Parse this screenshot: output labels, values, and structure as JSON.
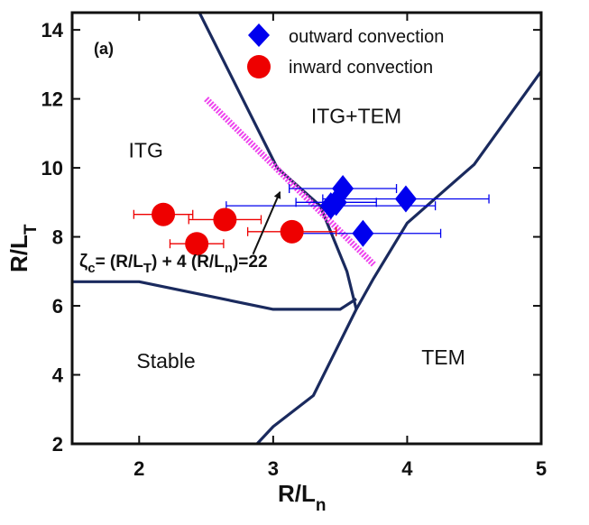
{
  "chart_data": {
    "type": "scatter",
    "panel_label": "(a)",
    "xlabel": "R/L",
    "xlabel_sub": "n",
    "ylabel": "R/L",
    "ylabel_sub": "T",
    "xlim": [
      1.5,
      5.0
    ],
    "ylim": [
      2.0,
      14.5
    ],
    "x_ticks": [
      2,
      3,
      4,
      5
    ],
    "y_ticks": [
      2,
      4,
      6,
      8,
      10,
      12,
      14
    ],
    "grid": false,
    "legend_position": "top-right",
    "series": [
      {
        "name": "outward convection",
        "marker": "diamond",
        "color": "#0000ee",
        "points": [
          {
            "x": 3.43,
            "y": 8.9,
            "xerr": 0.78
          },
          {
            "x": 3.52,
            "y": 9.4,
            "xerr": 0.4
          },
          {
            "x": 3.47,
            "y": 9.0,
            "xerr": 0.3
          },
          {
            "x": 3.67,
            "y": 8.1,
            "xerr": 0.58
          },
          {
            "x": 3.99,
            "y": 9.1,
            "xerr": 0.62
          }
        ]
      },
      {
        "name": "inward convection",
        "marker": "circle",
        "color": "#ee0000",
        "points": [
          {
            "x": 2.18,
            "y": 8.65,
            "xerr": 0.22
          },
          {
            "x": 2.43,
            "y": 7.8,
            "xerr": 0.2
          },
          {
            "x": 2.64,
            "y": 8.5,
            "xerr": 0.27
          },
          {
            "x": 3.14,
            "y": 8.15,
            "xerr": 0.33
          }
        ]
      }
    ],
    "boundaries": [
      {
        "points": [
          [
            2.45,
            14.5
          ],
          [
            3.03,
            10.0
          ],
          [
            3.35,
            8.9
          ],
          [
            3.55,
            7.0
          ],
          [
            3.62,
            5.9
          ]
        ]
      },
      {
        "points": [
          [
            1.5,
            6.7
          ],
          [
            2.0,
            6.7
          ],
          [
            3.0,
            5.9
          ],
          [
            3.5,
            5.9
          ],
          [
            3.62,
            6.2
          ]
        ]
      },
      {
        "points": [
          [
            2.88,
            2.0
          ],
          [
            3.0,
            2.5
          ],
          [
            3.3,
            3.4
          ],
          [
            3.62,
            5.9
          ],
          [
            3.75,
            6.8
          ],
          [
            4.0,
            8.4
          ],
          [
            4.5,
            10.1
          ],
          [
            5.0,
            12.8
          ]
        ]
      }
    ],
    "threshold_line": {
      "label": "ζ",
      "label_sub": "c",
      "color": "#ee44ee",
      "points": [
        [
          2.5,
          12.0
        ],
        [
          3.75,
          7.2
        ]
      ]
    },
    "regions": [
      {
        "label": "ITG",
        "x": 2.05,
        "y": 10.3
      },
      {
        "label": "ITG+TEM",
        "x": 3.62,
        "y": 11.3
      },
      {
        "label": "Stable",
        "x": 2.2,
        "y": 4.2
      },
      {
        "label": "TEM",
        "x": 4.27,
        "y": 4.3
      }
    ],
    "annotation": {
      "text_parts": [
        "= (R/L",
        "T",
        ") + 4 (R/L",
        "n",
        ")=22"
      ],
      "arrow_from": [
        2.85,
        7.5
      ],
      "arrow_to": [
        3.05,
        9.3
      ]
    }
  }
}
